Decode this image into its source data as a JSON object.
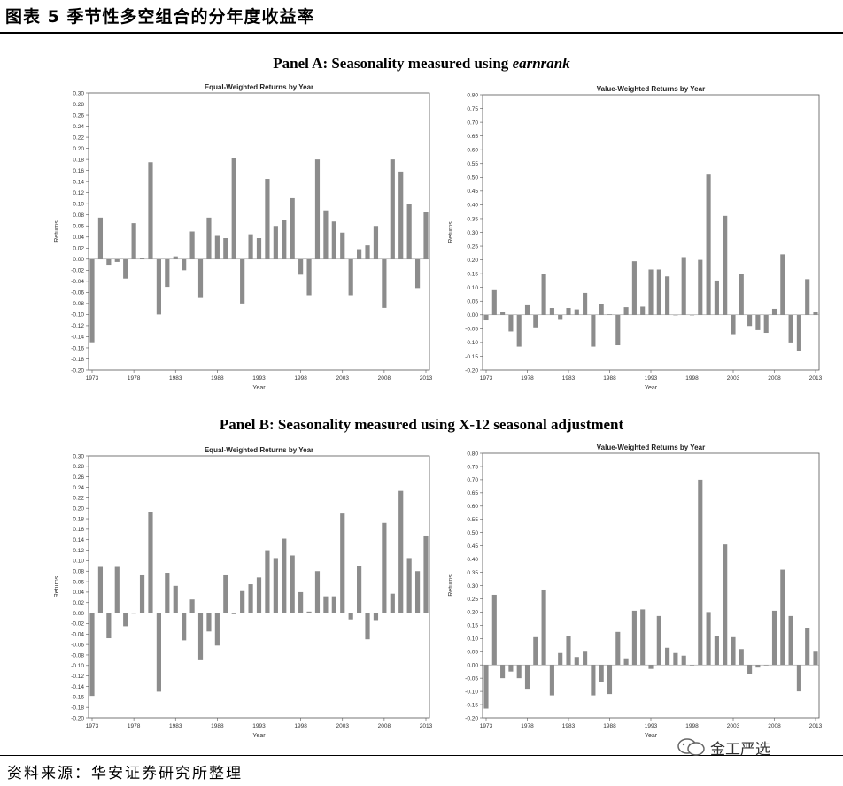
{
  "figure": {
    "title": "图表 5  季节性多空组合的分年度收益率",
    "source": "资料来源：华安证券研究所整理",
    "watermark": "金工严选",
    "panel_a": "Panel A: Seasonality measured using ",
    "panel_a_em": "earnrank",
    "panel_b": "Panel B: Seasonality measured using X-12 seasonal adjustment"
  },
  "colors": {
    "bar": "#8c8c8c",
    "axis": "#555555"
  },
  "chart_data": [
    {
      "type": "bar",
      "title": "Equal-Weighted Returns by Year",
      "xlabel": "Year",
      "ylabel": "Returns",
      "ylim": [
        -0.2,
        0.3
      ],
      "yticks": [
        "0.30",
        "0.28",
        "0.26",
        "0.24",
        "0.22",
        "0.20",
        "0.18",
        "0.16",
        "0.14",
        "0.12",
        "0.10",
        "0.08",
        "0.06",
        "0.04",
        "0.02",
        "0.00",
        "-0.02",
        "-0.04",
        "-0.06",
        "-0.08",
        "-0.10",
        "-0.12",
        "-0.14",
        "-0.16",
        "-0.18",
        "-0.20"
      ],
      "xticks": [
        "1973",
        "1978",
        "1983",
        "1988",
        "1993",
        "1998",
        "2003",
        "2008",
        "2013"
      ],
      "x": [
        1973,
        1974,
        1975,
        1976,
        1977,
        1978,
        1979,
        1980,
        1981,
        1982,
        1983,
        1984,
        1985,
        1986,
        1987,
        1988,
        1989,
        1990,
        1991,
        1992,
        1993,
        1994,
        1995,
        1996,
        1997,
        1998,
        1999,
        2000,
        2001,
        2002,
        2003,
        2004,
        2005,
        2006,
        2007,
        2008,
        2009,
        2010,
        2011,
        2012,
        2013
      ],
      "values": [
        -0.15,
        0.075,
        -0.01,
        -0.005,
        -0.035,
        0.065,
        0.002,
        0.175,
        -0.1,
        -0.05,
        0.005,
        -0.02,
        0.05,
        -0.07,
        0.075,
        0.042,
        0.038,
        0.182,
        -0.08,
        0.045,
        0.038,
        0.145,
        0.06,
        0.07,
        0.11,
        -0.028,
        -0.065,
        0.18,
        0.088,
        0.068,
        0.048,
        -0.065,
        0.018,
        0.025,
        0.06,
        -0.088,
        0.18,
        0.158,
        0.1,
        -0.052,
        0.085
      ],
      "grid": false
    },
    {
      "type": "bar",
      "title": "Value-Weighted Returns by Year",
      "xlabel": "Year",
      "ylabel": "Returns",
      "ylim": [
        -0.2,
        0.8
      ],
      "yticks": [
        "0.80",
        "0.75",
        "0.70",
        "0.65",
        "0.60",
        "0.55",
        "0.50",
        "0.45",
        "0.40",
        "0.35",
        "0.30",
        "0.25",
        "0.20",
        "0.15",
        "0.10",
        "0.05",
        "0.00",
        "-0.05",
        "-0.10",
        "-0.15",
        "-0.20"
      ],
      "xticks": [
        "1973",
        "1978",
        "1983",
        "1988",
        "1993",
        "1998",
        "2003",
        "2008",
        "2013"
      ],
      "x": [
        1973,
        1974,
        1975,
        1976,
        1977,
        1978,
        1979,
        1980,
        1981,
        1982,
        1983,
        1984,
        1985,
        1986,
        1987,
        1988,
        1989,
        1990,
        1991,
        1992,
        1993,
        1994,
        1995,
        1996,
        1997,
        1998,
        1999,
        2000,
        2001,
        2002,
        2003,
        2004,
        2005,
        2006,
        2007,
        2008,
        2009,
        2010,
        2011,
        2012,
        2013
      ],
      "values": [
        -0.02,
        0.09,
        0.01,
        -0.06,
        -0.115,
        0.035,
        -0.045,
        0.15,
        0.025,
        -0.015,
        0.025,
        0.02,
        0.08,
        -0.115,
        0.04,
        0.002,
        -0.11,
        0.028,
        0.195,
        0.03,
        0.165,
        0.165,
        0.14,
        0.0,
        0.21,
        0.0,
        0.2,
        0.51,
        0.125,
        0.36,
        -0.07,
        0.15,
        -0.04,
        -0.055,
        -0.065,
        0.022,
        0.22,
        -0.1,
        -0.13,
        0.13,
        0.01
      ],
      "grid": false
    },
    {
      "type": "bar",
      "title": "Equal-Weighted Returns by Year",
      "xlabel": "Year",
      "ylabel": "Returns",
      "ylim": [
        -0.2,
        0.3
      ],
      "yticks": [
        "0.30",
        "0.28",
        "0.26",
        "0.24",
        "0.22",
        "0.20",
        "0.18",
        "0.16",
        "0.14",
        "0.12",
        "0.10",
        "0.08",
        "0.06",
        "0.04",
        "0.02",
        "0.00",
        "-0.02",
        "-0.04",
        "-0.06",
        "-0.08",
        "-0.10",
        "-0.12",
        "-0.14",
        "-0.16",
        "-0.18",
        "-0.20"
      ],
      "xticks": [
        "1973",
        "1978",
        "1983",
        "1988",
        "1993",
        "1998",
        "2003",
        "2008",
        "2013"
      ],
      "x": [
        1973,
        1974,
        1975,
        1976,
        1977,
        1978,
        1979,
        1980,
        1981,
        1982,
        1983,
        1984,
        1985,
        1986,
        1987,
        1988,
        1989,
        1990,
        1991,
        1992,
        1993,
        1994,
        1995,
        1996,
        1997,
        1998,
        1999,
        2000,
        2001,
        2002,
        2003,
        2004,
        2005,
        2006,
        2007,
        2008,
        2009,
        2010,
        2011,
        2012,
        2013
      ],
      "values": [
        -0.158,
        0.088,
        -0.048,
        0.088,
        -0.025,
        0.0,
        0.072,
        0.193,
        -0.15,
        0.077,
        0.052,
        -0.052,
        0.026,
        -0.09,
        -0.035,
        -0.062,
        0.072,
        -0.002,
        0.042,
        0.055,
        0.068,
        0.12,
        0.105,
        0.142,
        0.11,
        0.04,
        0.003,
        0.08,
        0.032,
        0.032,
        0.19,
        -0.012,
        0.09,
        -0.05,
        -0.015,
        0.172,
        0.037,
        0.233,
        0.105,
        0.08,
        0.148
      ],
      "grid": false
    },
    {
      "type": "bar",
      "title": "Value-Weighted Returns by Year",
      "xlabel": "Year",
      "ylabel": "Returns",
      "ylim": [
        -0.2,
        0.8
      ],
      "yticks": [
        "0.80",
        "0.75",
        "0.70",
        "0.65",
        "0.60",
        "0.55",
        "0.50",
        "0.45",
        "0.40",
        "0.35",
        "0.30",
        "0.25",
        "0.20",
        "0.15",
        "0.10",
        "0.05",
        "0.00",
        "-0.05",
        "-0.10",
        "-0.15",
        "-0.20"
      ],
      "xticks": [
        "1973",
        "1978",
        "1983",
        "1988",
        "1993",
        "1998",
        "2003",
        "2008",
        "2013"
      ],
      "x": [
        1973,
        1974,
        1975,
        1976,
        1977,
        1978,
        1979,
        1980,
        1981,
        1982,
        1983,
        1984,
        1985,
        1986,
        1987,
        1988,
        1989,
        1990,
        1991,
        1992,
        1993,
        1994,
        1995,
        1996,
        1997,
        1998,
        1999,
        2000,
        2001,
        2002,
        2003,
        2004,
        2005,
        2006,
        2007,
        2008,
        2009,
        2010,
        2011,
        2012,
        2013
      ],
      "values": [
        -0.165,
        0.265,
        -0.05,
        -0.025,
        -0.05,
        -0.09,
        0.105,
        0.285,
        -0.115,
        0.045,
        0.11,
        0.03,
        0.05,
        -0.115,
        -0.065,
        -0.11,
        0.125,
        0.025,
        0.205,
        0.21,
        -0.015,
        0.185,
        0.065,
        0.045,
        0.035,
        0.0,
        0.7,
        0.2,
        0.11,
        0.455,
        0.105,
        0.06,
        -0.035,
        -0.01,
        0.0,
        0.205,
        0.36,
        0.185,
        -0.1,
        0.14,
        0.05
      ],
      "grid": false
    }
  ]
}
